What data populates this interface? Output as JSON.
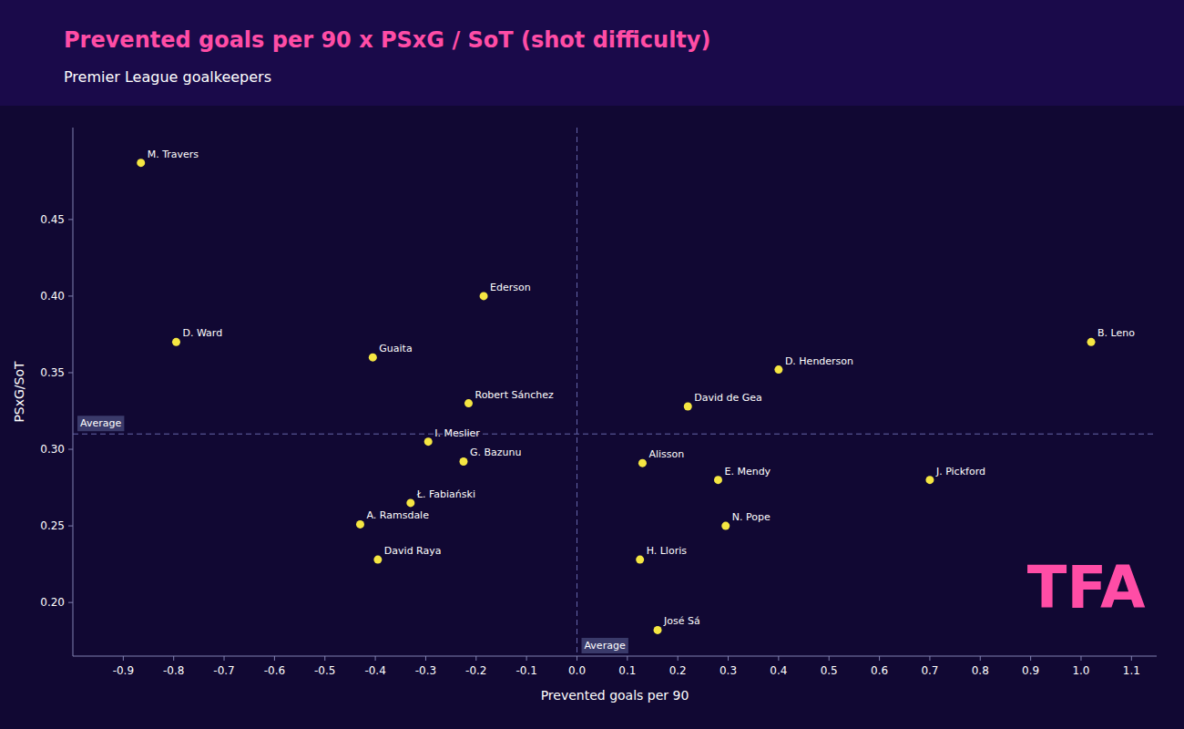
{
  "chart_data": {
    "type": "scatter",
    "title": "Prevented goals per 90 x PSxG / SoT (shot difficulty)",
    "subtitle": "Premier League goalkeepers",
    "xlabel": "Prevented goals per 90",
    "ylabel": "PSxG/SoT",
    "color": "#f5e642",
    "grid": false,
    "xlim": [
      -1.0,
      1.15
    ],
    "ylim": [
      0.165,
      0.51
    ],
    "xticks": [
      -0.9,
      -0.8,
      -0.7,
      -0.6,
      -0.5,
      -0.4,
      -0.3,
      -0.2,
      -0.1,
      {
        "value": 0,
        "label": "0.0"
      },
      0.1,
      0.2,
      0.3,
      0.4,
      0.5,
      0.6,
      0.7,
      0.8,
      0.9,
      {
        "value": 1,
        "label": "1.0"
      },
      1.1
    ],
    "yticks": [
      {
        "value": 0.2,
        "label": "0.20"
      },
      0.25,
      {
        "value": 0.3,
        "label": "0.30"
      },
      0.35,
      {
        "value": 0.4,
        "label": "0.40"
      },
      0.45
    ],
    "labels": [
      "M. Travers",
      "D. Ward",
      "Guaita",
      "Ederson",
      "Robert Sánchez",
      "I. Meslier",
      "G. Bazunu",
      "Ł. Fabiański",
      "A. Ramsdale",
      "David Raya",
      "D. Henderson",
      "David de Gea",
      "Alisson",
      "E. Mendy",
      "J. Pickford",
      "N. Pope",
      "H. Lloris",
      "José Sá",
      "B. Leno"
    ],
    "x": [
      -0.865,
      -0.795,
      -0.405,
      -0.185,
      -0.215,
      -0.295,
      -0.225,
      -0.33,
      -0.43,
      -0.395,
      0.4,
      0.22,
      0.13,
      0.28,
      0.7,
      0.295,
      0.125,
      0.16,
      1.02
    ],
    "values": [
      0.487,
      0.37,
      0.36,
      0.4,
      0.33,
      0.305,
      0.292,
      0.265,
      0.251,
      0.228,
      0.352,
      0.328,
      0.291,
      0.28,
      0.28,
      0.25,
      0.228,
      0.182,
      0.37
    ],
    "reference_lines": [
      {
        "axis": "y",
        "value": 0.31,
        "label": "Average"
      },
      {
        "axis": "x",
        "value": 0.0,
        "label": "Average"
      }
    ],
    "annotations": [
      {
        "text": "TFA"
      }
    ]
  }
}
